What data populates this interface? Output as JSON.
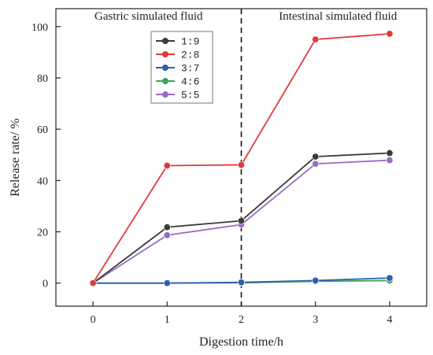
{
  "chart_data": {
    "type": "line",
    "title": "",
    "xlabel": "Digestion time/h",
    "ylabel": "Release rate/ %",
    "x": [
      0,
      1,
      2,
      3,
      4
    ],
    "x_ticks": [
      "0",
      "1",
      "2",
      "3",
      "4"
    ],
    "y_ticks": [
      "0",
      "20",
      "40",
      "60",
      "80",
      "100"
    ],
    "xlim": [
      -0.5,
      4.5
    ],
    "ylim": [
      -9,
      107
    ],
    "grid": false,
    "legend_position": "upper-left-center",
    "annotations": {
      "left_region": "Gastric simulated fluid",
      "right_region": "Intestinal simulated fluid",
      "divider_x": 2
    },
    "series": [
      {
        "name": "1:9",
        "color": "#3a3a3a",
        "values": [
          0,
          21.8,
          24.3,
          49.3,
          50.7
        ]
      },
      {
        "name": "2:8",
        "color": "#e03c3c",
        "values": [
          0,
          45.8,
          46.1,
          95.0,
          97.2
        ]
      },
      {
        "name": "3:7",
        "color": "#2f5fb0",
        "values": [
          0,
          0,
          0.3,
          1.0,
          2.0
        ]
      },
      {
        "name": "4:6",
        "color": "#3aa55a",
        "values": [
          0,
          0,
          0.1,
          0.7,
          1.0
        ]
      },
      {
        "name": "5:5",
        "color": "#9a6cc6",
        "values": [
          0,
          18.7,
          22.8,
          46.5,
          47.9
        ]
      }
    ]
  }
}
